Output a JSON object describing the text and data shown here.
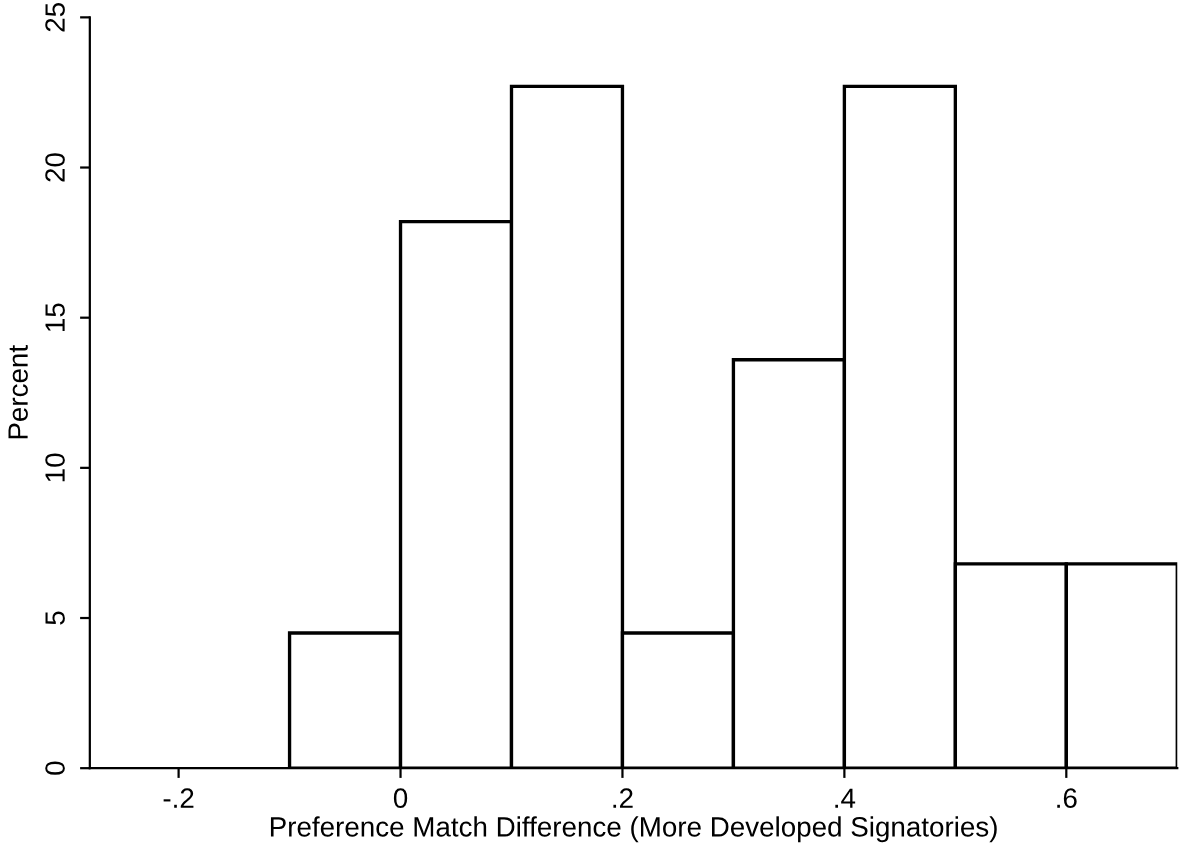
{
  "chart_data": {
    "type": "histogram",
    "xlabel": "Preference Match Difference (More Developed Signatories)",
    "ylabel": "Percent",
    "bins": [
      -0.1,
      0,
      0.1,
      0.2,
      0.3,
      0.4,
      0.5,
      0.6,
      0.7
    ],
    "values": [
      4.5,
      18.2,
      22.7,
      4.5,
      13.6,
      22.7,
      6.8,
      6.8
    ],
    "color": "#ffffff",
    "xlim": [
      -0.28,
      0.7
    ],
    "ylim": [
      0,
      25
    ],
    "xticks": [
      {
        "value": -0.2,
        "label": "-.2"
      },
      0,
      {
        "value": 0.2,
        "label": ".2"
      },
      {
        "value": 0.4,
        "label": ".4"
      },
      {
        "value": 0.6,
        "label": ".6"
      }
    ],
    "yticks": [
      0,
      5,
      10,
      15,
      20,
      25
    ],
    "grid": false
  }
}
